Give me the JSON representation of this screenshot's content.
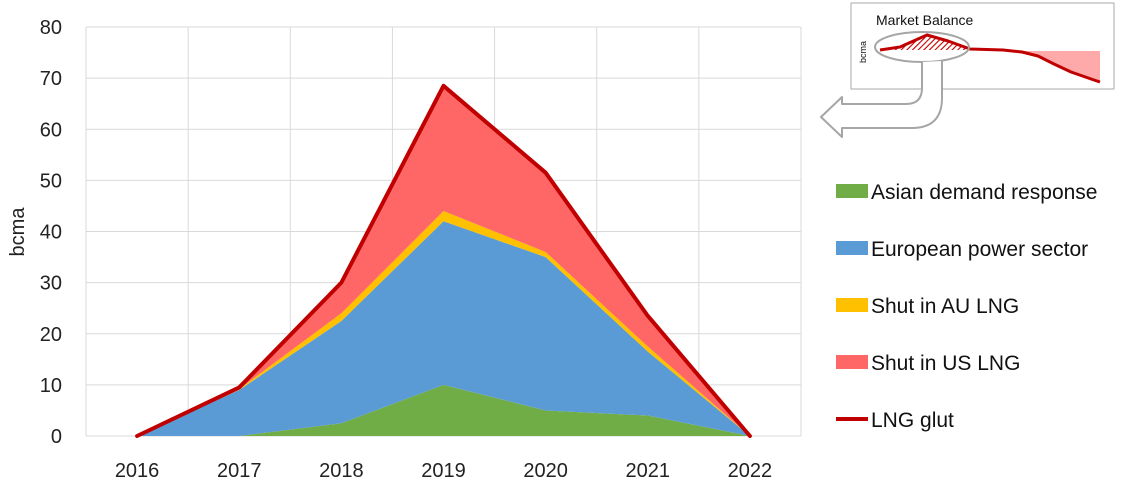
{
  "chart_data": {
    "type": "area",
    "stacked": true,
    "ylabel": "bcma",
    "xlabel": "",
    "ylim": [
      0,
      80
    ],
    "yticks": [
      0,
      10,
      20,
      30,
      40,
      50,
      60,
      70,
      80
    ],
    "categories": [
      "2016",
      "2017",
      "2018",
      "2019",
      "2020",
      "2021",
      "2022"
    ],
    "grid": true,
    "legend_position": "right",
    "series": [
      {
        "name": "Asian demand response",
        "kind": "area",
        "color": "#70ad47",
        "values": [
          0,
          0,
          2.5,
          10,
          5,
          4,
          0
        ]
      },
      {
        "name": "European power sector",
        "kind": "area",
        "color": "#5b9bd5",
        "values": [
          0,
          9,
          20,
          32,
          30,
          12.5,
          0
        ]
      },
      {
        "name": "Shut in AU LNG",
        "kind": "area",
        "color": "#ffc000",
        "values": [
          0,
          0.2,
          1.5,
          2,
          1,
          1,
          0
        ]
      },
      {
        "name": "Shut in US LNG",
        "kind": "area",
        "color": "#ff6666",
        "values": [
          0,
          0.3,
          6,
          24.5,
          15.5,
          6,
          0
        ]
      },
      {
        "name": "LNG glut",
        "kind": "line",
        "color": "#c00000",
        "values": [
          0,
          9.5,
          30,
          68.5,
          51.5,
          23.5,
          0
        ]
      }
    ]
  },
  "inset": {
    "title": "Market Balance",
    "ylabel": "bcma",
    "colors": {
      "line": "#c00000",
      "fill": "#ffaaaa",
      "hatch": "#c00000",
      "border": "#aaaaaa"
    }
  }
}
